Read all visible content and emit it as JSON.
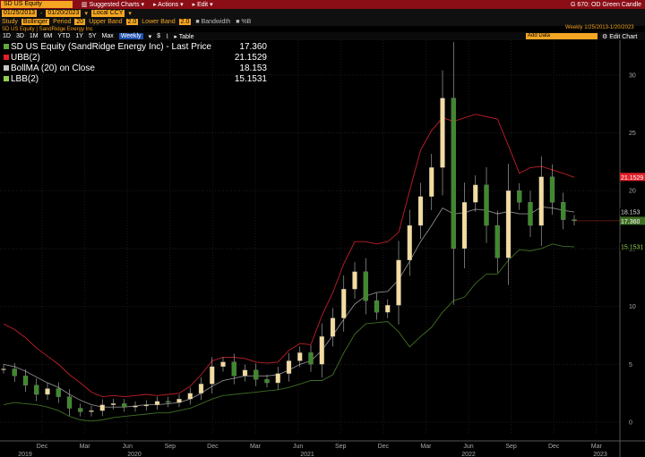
{
  "menubar": {
    "ticker_field": "SD US Equity",
    "menu_suggested": "Suggested Charts",
    "menu_actions": "Actions",
    "menu_edit": "Edit",
    "title_right": "G 670: OD Green Candle"
  },
  "params": {
    "start_date": "01/25/2013",
    "end_date": "01/20/2023",
    "currency_label": "Local CCY"
  },
  "study": {
    "label": "Study",
    "name": "Bollinger",
    "period_label": "Period",
    "period": "20",
    "upper_label": "Upper Band",
    "upper": "2.0",
    "lower_label": "Lower Band",
    "lower": "2.0",
    "bandwidth_label": "Bandwidth",
    "pctb_label": "%B"
  },
  "info": {
    "text": "SD US Equity | SandRidge Energy Inc",
    "weekly_range": "Weekly  1/25/2013-1/20/2023"
  },
  "tabs": {
    "items": [
      "1D",
      "3D",
      "1M",
      "6M",
      "YTD",
      "1Y",
      "5Y",
      "Max"
    ],
    "frequency": "Weekly",
    "table_label": "Table",
    "add_field": "Add Data",
    "edit_chart": "Edit Chart"
  },
  "legend": {
    "items": [
      {
        "name": "SD US Equity (SandRidge Energy Inc) - Last Price",
        "value": "17.360",
        "color": "#5fa83a"
      },
      {
        "name": "UBB(2)",
        "value": "21.1529",
        "color": "#e0202a"
      },
      {
        "name": "BollMA (20)  on Close",
        "value": "18.153",
        "color": "#c8c8c8"
      },
      {
        "name": "LBB(2)",
        "value": "15.1531",
        "color": "#8fd14f"
      }
    ]
  },
  "colors": {
    "up_candle": "#f2dca0",
    "down_candle": "#3e8a2a",
    "upper_band": "#c0202a",
    "middle_band": "#8a8a8a",
    "lower_band": "#3f6f22",
    "accent": "#f5a623"
  },
  "chart_data": {
    "type": "line",
    "y_ticks": [
      0,
      5,
      10,
      15,
      20,
      25,
      30
    ],
    "ylim": [
      -1,
      33
    ],
    "x_month_labels": [
      "Dec",
      "Mar",
      "Jun",
      "Sep",
      "Dec",
      "Mar",
      "Jun",
      "Sep",
      "Dec",
      "Mar",
      "Jun",
      "Sep",
      "Dec",
      "Mar"
    ],
    "x_year_labels": [
      "2019",
      "2020",
      "2021",
      "2022",
      "2023"
    ],
    "last_price_tag": "17.360",
    "upper_tag": "21.1529",
    "middle_tag": "18.153",
    "lower_tag": "15.1531",
    "series": [
      {
        "name": "Last Price",
        "values": [
          4.6,
          4.0,
          3.2,
          2.4,
          2.9,
          2.2,
          1.2,
          0.9,
          1.0,
          1.5,
          1.6,
          1.3,
          1.4,
          1.5,
          1.8,
          1.7,
          2.0,
          2.5,
          3.3,
          4.8,
          5.2,
          4.0,
          4.5,
          3.7,
          3.4,
          4.2,
          5.3,
          6.0,
          5.0,
          7.4,
          9.0,
          11.5,
          13.0,
          10.5,
          9.5,
          10.1,
          14.0,
          17.0,
          19.5,
          22.0,
          28.0,
          15.0,
          19.0,
          20.5,
          17.0,
          14.2,
          20.0,
          19.0,
          17.0,
          21.2,
          19.0,
          17.5,
          17.4
        ]
      },
      {
        "name": "UBB(2)",
        "values": [
          8.5,
          8.0,
          7.3,
          6.4,
          5.7,
          5.0,
          4.1,
          3.4,
          2.6,
          2.2,
          2.3,
          2.2,
          2.3,
          2.4,
          2.3,
          2.4,
          2.5,
          3.1,
          4.1,
          5.3,
          5.6,
          5.6,
          5.5,
          5.2,
          5.1,
          5.2,
          6.2,
          6.8,
          6.7,
          9.2,
          11.2,
          13.7,
          15.6,
          15.6,
          15.4,
          15.6,
          16.4,
          20.0,
          23.5,
          25.2,
          26.3,
          26.0,
          26.3,
          26.6,
          26.4,
          26.2,
          23.9,
          21.5,
          22.0,
          22.1,
          21.8,
          21.5,
          21.1529
        ]
      },
      {
        "name": "BollMA (20)  on Close",
        "values": [
          5.0,
          4.8,
          4.4,
          3.9,
          3.4,
          3.0,
          2.4,
          1.9,
          1.5,
          1.3,
          1.3,
          1.3,
          1.4,
          1.5,
          1.5,
          1.6,
          1.7,
          2.0,
          2.5,
          3.1,
          3.6,
          3.8,
          4.0,
          4.0,
          4.0,
          4.1,
          4.5,
          5.0,
          5.3,
          6.2,
          7.5,
          8.9,
          10.2,
          10.9,
          11.2,
          11.3,
          12.3,
          13.9,
          15.6,
          17.0,
          18.5,
          18.0,
          18.1,
          18.4,
          18.3,
          18.0,
          18.2,
          18.0,
          18.0,
          18.6,
          18.5,
          18.3,
          18.153
        ]
      },
      {
        "name": "LBB(2)",
        "values": [
          1.5,
          1.7,
          1.6,
          1.5,
          1.3,
          1.0,
          0.5,
          0.2,
          0.1,
          0.2,
          0.4,
          0.5,
          0.6,
          0.7,
          0.8,
          0.8,
          1.0,
          1.2,
          1.6,
          2.0,
          2.3,
          2.4,
          2.5,
          2.6,
          2.7,
          2.8,
          3.0,
          3.3,
          3.6,
          3.6,
          4.1,
          6.0,
          7.6,
          8.5,
          8.6,
          8.7,
          7.8,
          6.5,
          7.4,
          8.2,
          9.5,
          10.5,
          10.8,
          12.0,
          12.8,
          12.8,
          14.0,
          14.9,
          14.8,
          15.0,
          15.4,
          15.2,
          15.1531
        ]
      }
    ]
  }
}
